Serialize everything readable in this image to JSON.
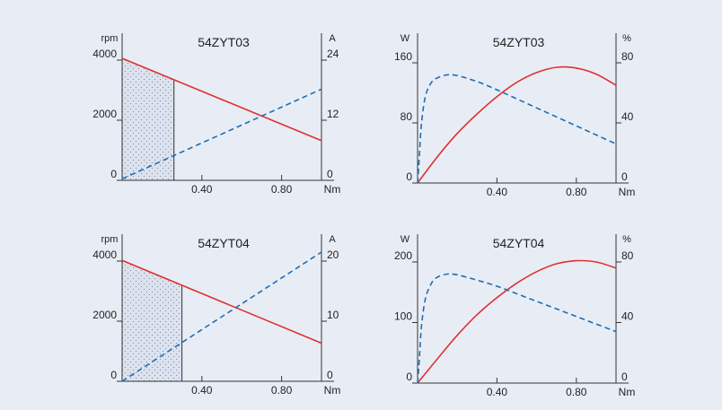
{
  "colors": {
    "background": "#e8edf5",
    "axis": "#333333",
    "speed_power": "#e03030",
    "current_efficiency": "#1f6db3",
    "operating_region_fill": "#dde3ee"
  },
  "chart_data": [
    {
      "type": "line",
      "title": "54ZYT03",
      "xlabel": "Nm",
      "ylabel_left": "rpm",
      "ylabel_right": "A",
      "xlim": [
        0,
        1.0
      ],
      "xticks": [
        "0.40",
        "0.80"
      ],
      "ylim_left": [
        0,
        4000
      ],
      "yticks_left": [
        "0",
        "2000",
        "4000"
      ],
      "ylim_right": [
        0,
        24
      ],
      "yticks_right": [
        "0",
        "12",
        "24"
      ],
      "shaded_region_x": [
        0,
        0.26
      ],
      "series": [
        {
          "axis": "left",
          "style": "solid",
          "x": [
            0,
            1.0
          ],
          "y": [
            4060,
            1320
          ]
        },
        {
          "axis": "right",
          "style": "dashed",
          "x": [
            0,
            1.0
          ],
          "y": [
            0.3,
            18.2
          ]
        }
      ]
    },
    {
      "type": "line",
      "title": "54ZYT03",
      "xlabel": "Nm",
      "ylabel_left": "W",
      "ylabel_right": "%",
      "xlim": [
        0,
        1.0
      ],
      "xticks": [
        "0.40",
        "0.80"
      ],
      "ylim_left": [
        0,
        160
      ],
      "yticks_left": [
        "0",
        "80",
        "160"
      ],
      "ylim_right": [
        0,
        80
      ],
      "yticks_right": [
        "0",
        "40",
        "80"
      ],
      "series": [
        {
          "axis": "left",
          "style": "solid",
          "x": [
            0,
            0.1,
            0.2,
            0.3,
            0.4,
            0.5,
            0.6,
            0.7,
            0.8,
            0.9,
            1.0
          ],
          "y": [
            0,
            35,
            66,
            92,
            115,
            134,
            147,
            154,
            153,
            145,
            130
          ]
        },
        {
          "axis": "right",
          "style": "dashed",
          "x": [
            0,
            0.01,
            0.02,
            0.04,
            0.07,
            0.1,
            0.15,
            0.2,
            0.3,
            0.4,
            0.5,
            0.6,
            0.7,
            0.8,
            0.9,
            1.0
          ],
          "y": [
            0,
            20,
            40,
            58,
            67,
            70,
            72,
            71.5,
            67.5,
            62,
            56,
            50,
            44,
            38,
            32,
            26
          ]
        }
      ]
    },
    {
      "type": "line",
      "title": "54ZYT04",
      "xlabel": "Nm",
      "ylabel_left": "rpm",
      "ylabel_right": "A",
      "xlim": [
        0,
        1.0
      ],
      "xticks": [
        "0.40",
        "0.80"
      ],
      "ylim_left": [
        0,
        4000
      ],
      "yticks_left": [
        "0",
        "2000",
        "4000"
      ],
      "ylim_right": [
        0,
        20
      ],
      "yticks_right": [
        "0",
        "10",
        "20"
      ],
      "shaded_region_x": [
        0,
        0.3
      ],
      "series": [
        {
          "axis": "left",
          "style": "solid",
          "x": [
            0,
            1.0
          ],
          "y": [
            4020,
            1270
          ]
        },
        {
          "axis": "right",
          "style": "dashed",
          "x": [
            0,
            1.0
          ],
          "y": [
            0,
            21.5
          ]
        }
      ]
    },
    {
      "type": "line",
      "title": "54ZYT04",
      "xlabel": "Nm",
      "ylabel_left": "W",
      "ylabel_right": "%",
      "xlim": [
        0,
        1.0
      ],
      "xticks": [
        "0.40",
        "0.80"
      ],
      "ylim_left": [
        0,
        200
      ],
      "yticks_left": [
        "0",
        "100",
        "200"
      ],
      "ylim_right": [
        0,
        80
      ],
      "yticks_right": [
        "0",
        "40",
        "80"
      ],
      "series": [
        {
          "axis": "left",
          "style": "solid",
          "x": [
            0,
            0.1,
            0.2,
            0.3,
            0.4,
            0.5,
            0.6,
            0.7,
            0.8,
            0.9,
            1.0
          ],
          "y": [
            0,
            40,
            79,
            113,
            141,
            165,
            184,
            197,
            202,
            200,
            190
          ]
        },
        {
          "axis": "right",
          "style": "dashed",
          "x": [
            0,
            0.01,
            0.02,
            0.04,
            0.07,
            0.1,
            0.15,
            0.2,
            0.3,
            0.4,
            0.5,
            0.6,
            0.7,
            0.8,
            0.9,
            1.0
          ],
          "y": [
            0,
            18,
            38,
            56,
            66,
            70,
            72,
            71.5,
            68,
            64,
            59,
            54,
            49,
            44,
            39,
            34
          ]
        }
      ]
    }
  ]
}
